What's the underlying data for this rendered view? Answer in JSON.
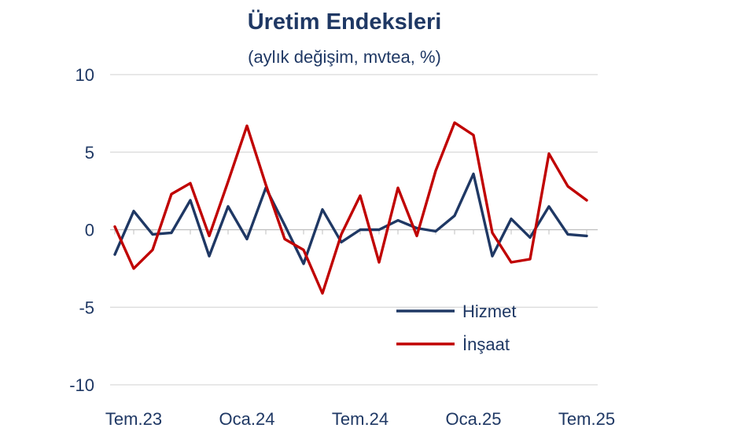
{
  "chart_data": {
    "type": "line",
    "title": "Üretim Endeksleri",
    "subtitle": "(aylık değişim, mvtea, %)",
    "xlabel": "",
    "ylabel": "",
    "ylim": [
      -10,
      10
    ],
    "y_ticks": [
      "10",
      "5",
      "0",
      "-5",
      "-10"
    ],
    "y_tick_values": [
      10,
      5,
      0,
      -5,
      -10
    ],
    "x": [
      "2023-06",
      "2023-07",
      "2023-08",
      "2023-09",
      "2023-10",
      "2023-11",
      "2023-12",
      "2024-01",
      "2024-02",
      "2024-03",
      "2024-04",
      "2024-05",
      "2024-06",
      "2024-07",
      "2024-08",
      "2024-09",
      "2024-10",
      "2024-11",
      "2024-12",
      "2025-01",
      "2025-02",
      "2025-03",
      "2025-04",
      "2025-05",
      "2025-06",
      "2025-07"
    ],
    "x_tick_labels": [
      {
        "label": "Tem.23",
        "x": "2023-07"
      },
      {
        "label": "Oca.24",
        "x": "2024-01"
      },
      {
        "label": "Tem.24",
        "x": "2024-07"
      },
      {
        "label": "Oca.25",
        "x": "2025-01"
      },
      {
        "label": "Tem.25",
        "x": "2025-07"
      }
    ],
    "grid": true,
    "legend_position": "bottom-right",
    "series": [
      {
        "name": "Hizmet",
        "color": "#1f3864",
        "values": [
          -1.6,
          1.2,
          -0.3,
          -0.2,
          1.9,
          -1.7,
          1.5,
          -0.6,
          2.7,
          0.3,
          -2.2,
          1.3,
          -0.8,
          0.0,
          0.0,
          0.6,
          0.1,
          -0.1,
          0.9,
          3.6,
          -1.7,
          0.7,
          -0.5,
          1.5,
          -0.3,
          -0.4
        ]
      },
      {
        "name": "İnşaat",
        "color": "#c00000",
        "values": [
          0.2,
          -2.5,
          -1.3,
          2.3,
          3.0,
          -0.4,
          3.1,
          6.7,
          2.9,
          -0.6,
          -1.3,
          -4.1,
          -0.3,
          2.2,
          -2.1,
          2.7,
          -0.4,
          3.8,
          6.9,
          6.1,
          -0.2,
          -2.1,
          -1.9,
          4.9,
          2.8,
          1.9
        ]
      }
    ]
  }
}
